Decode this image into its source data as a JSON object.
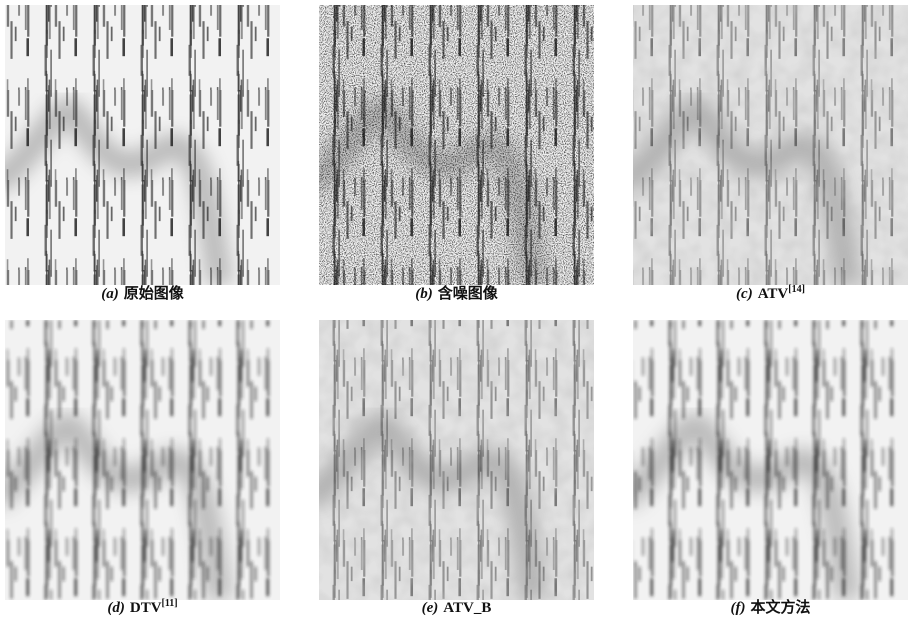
{
  "figure": {
    "panels": [
      {
        "tag": "(a)",
        "text": "原始图像"
      },
      {
        "tag": "(b)",
        "text": "含噪图像"
      },
      {
        "tag": "(c)",
        "text": "ATV",
        "ref": "[14]"
      },
      {
        "tag": "(d)",
        "text": "DTV",
        "ref": "[11]"
      },
      {
        "tag": "(e)",
        "text": "ATV_B"
      },
      {
        "tag": "(f)",
        "text": "本文方法"
      }
    ]
  }
}
